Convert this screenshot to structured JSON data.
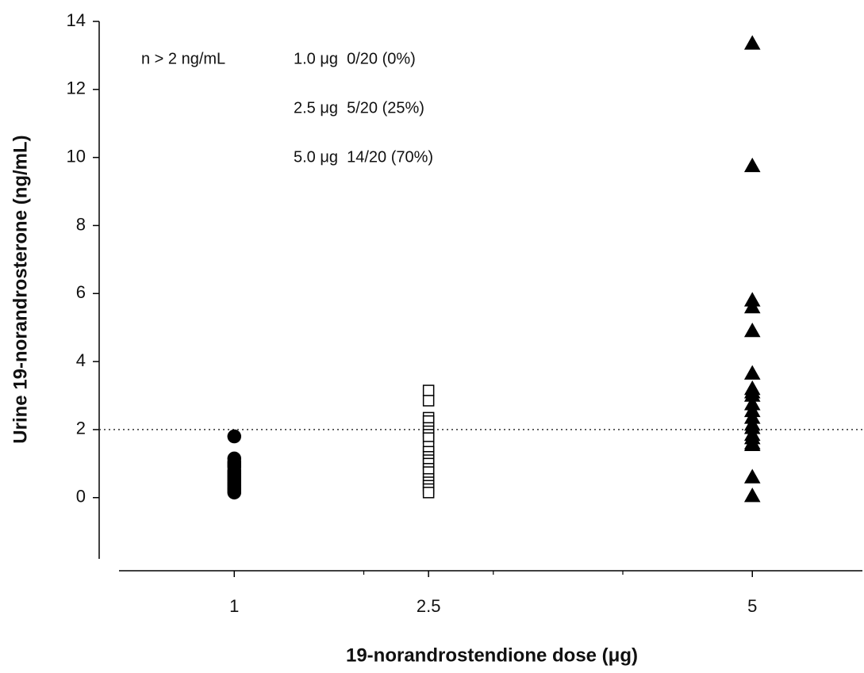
{
  "chart_data": {
    "type": "scatter",
    "x_label": "19-norandrostendione dose (μg)",
    "y_label": "Urine 19-norandrosterone (ng/mL)",
    "annotations": [
      "n > 2 ng/mL",
      "1.0 μg  0/20 (0%)",
      "2.5 μg  5/20 (25%)",
      "5.0 μg  14/20 (70%)"
    ],
    "xlim": [
      0.11,
      5.85
    ],
    "xticks": [
      1,
      2.5,
      5
    ],
    "xminorticks": [
      2,
      3,
      4
    ],
    "ylim": [
      -1.8,
      14
    ],
    "yticks": [
      0,
      2,
      4,
      6,
      8,
      10,
      12,
      14
    ],
    "hline": 2,
    "series": [
      {
        "marker": "circle",
        "color": "#000000",
        "filled": true,
        "x": [
          1,
          1,
          1,
          1,
          1,
          1,
          1,
          1,
          1,
          1,
          1,
          1,
          1,
          1,
          1,
          1,
          1,
          1,
          1,
          1
        ],
        "values": [
          1.8,
          1.15,
          1.05,
          1.0,
          0.95,
          0.9,
          0.8,
          0.75,
          0.7,
          0.65,
          0.6,
          0.55,
          0.5,
          0.45,
          0.4,
          0.35,
          0.3,
          0.25,
          0.2,
          0.15
        ]
      },
      {
        "marker": "square",
        "color": "#000000",
        "filled": false,
        "x": [
          2.5,
          2.5,
          2.5,
          2.5,
          2.5,
          2.5,
          2.5,
          2.5,
          2.5,
          2.5,
          2.5,
          2.5,
          2.5,
          2.5,
          2.5,
          2.5,
          2.5,
          2.5,
          2.5,
          2.5
        ],
        "values": [
          3.15,
          2.85,
          2.35,
          2.25,
          2.05,
          1.95,
          1.85,
          1.75,
          1.5,
          1.35,
          1.2,
          1.1,
          1.0,
          0.85,
          0.75,
          0.55,
          0.45,
          0.35,
          0.25,
          0.15
        ]
      },
      {
        "marker": "triangle",
        "color": "#000000",
        "filled": true,
        "x": [
          5,
          5,
          5,
          5,
          5,
          5,
          5,
          5,
          5,
          5,
          5,
          5,
          5,
          5,
          5,
          5,
          5,
          5,
          5,
          5
        ],
        "values": [
          13.35,
          9.75,
          5.8,
          5.6,
          4.9,
          3.65,
          3.2,
          3.1,
          3.0,
          2.75,
          2.55,
          2.35,
          2.15,
          2.05,
          1.85,
          1.75,
          1.6,
          1.55,
          0.6,
          0.05
        ]
      }
    ]
  }
}
